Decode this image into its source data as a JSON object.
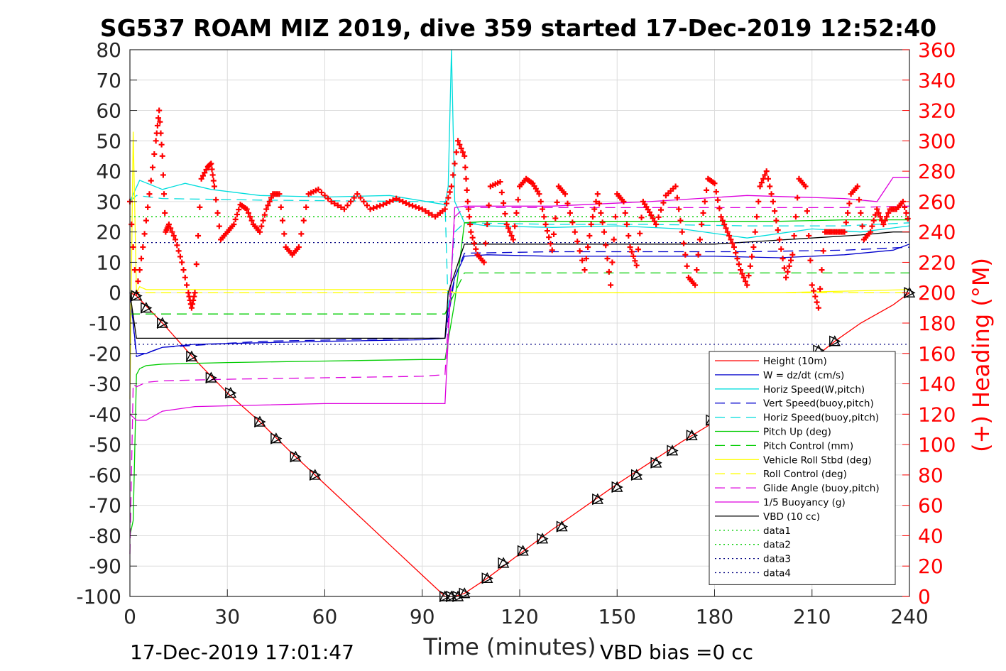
{
  "chart_data": {
    "type": "line",
    "title": "SG537 ROAM MIZ 2019, dive 359 started 17-Dec-2019 12:52:40",
    "xlabel": "Time (minutes)",
    "ylabel_right": "(+) Heading (°M)",
    "xlim": [
      0,
      240
    ],
    "ylim": [
      -100,
      80
    ],
    "ylim_right": [
      0,
      360
    ],
    "xticks": [
      "0",
      "30",
      "60",
      "90",
      "120",
      "150",
      "180",
      "210",
      "240"
    ],
    "yticks_left": [
      "80",
      "70",
      "60",
      "50",
      "40",
      "30",
      "20",
      "10",
      "0",
      "-10",
      "-20",
      "-30",
      "-40",
      "-50",
      "-60",
      "-70",
      "-80",
      "-90",
      "-100"
    ],
    "yticks_right": [
      "360",
      "340",
      "320",
      "300",
      "280",
      "260",
      "240",
      "220",
      "200",
      "180",
      "160",
      "140",
      "120",
      "100",
      "80",
      "60",
      "40",
      "20",
      "0"
    ],
    "grid": true,
    "legend_position": "lower-right",
    "footer_left": "17-Dec-2019 17:01:47",
    "footer_right": "VBD bias =0 cc",
    "heading_color": "#ff0000",
    "series": [
      {
        "name": "Height (10m)",
        "color": "#ff0000",
        "style": "solid",
        "x": [
          0,
          2,
          10,
          20,
          30,
          40,
          50,
          57,
          70,
          80,
          90,
          97,
          100,
          103,
          110,
          120,
          130,
          150,
          170,
          190,
          210,
          217,
          225,
          235,
          240
        ],
        "y": [
          0,
          -1,
          -10,
          -22,
          -33,
          -42.5,
          -53,
          -60,
          -73,
          -83,
          -93,
          -100,
          -100,
          -99,
          -94,
          -86,
          -78,
          -63,
          -49,
          -36,
          -22,
          -16,
          -10,
          -4,
          0
        ]
      },
      {
        "name": "W = dz/dt (cm/s)",
        "color": "#0000cc",
        "style": "solid",
        "x": [
          0,
          2,
          5,
          10,
          20,
          40,
          60,
          90,
          97,
          98,
          100,
          103,
          110,
          130,
          150,
          180,
          200,
          220,
          235,
          240
        ],
        "y": [
          0,
          -20,
          -20,
          -18,
          -17,
          -16.5,
          -16,
          -15.5,
          -15,
          -5,
          5,
          12,
          12.5,
          12,
          12,
          12,
          11.5,
          12.5,
          14,
          16
        ]
      },
      {
        "name": "Horiz Speed(W,pitch)",
        "color": "#00dddd",
        "style": "solid",
        "x": [
          0,
          3,
          10,
          17,
          25,
          40,
          60,
          80,
          97,
          98,
          99,
          100,
          103,
          110,
          130,
          150,
          170,
          190,
          210,
          225,
          240
        ],
        "y": [
          30,
          37,
          34,
          36,
          34,
          32,
          31.5,
          32,
          29,
          35,
          80,
          30,
          23,
          22,
          21.5,
          22,
          21,
          18,
          21,
          20,
          22
        ]
      },
      {
        "name": "Vert Speed(buoy,pitch)",
        "color": "#0000cc",
        "style": "dashed",
        "x": [
          0,
          2,
          10,
          40,
          90,
          97,
          100,
          103,
          130,
          160,
          190,
          220,
          240
        ],
        "y": [
          0,
          -21,
          -18,
          -16,
          -15,
          -15,
          5,
          13,
          13.5,
          13.5,
          13.5,
          14,
          15
        ]
      },
      {
        "name": "Horiz Speed(buoy,pitch)",
        "color": "#00dddd",
        "style": "dashed",
        "x": [
          0,
          2,
          10,
          40,
          90,
          97,
          98,
          100,
          103,
          130,
          160,
          190,
          220,
          240
        ],
        "y": [
          30,
          32,
          31,
          30.5,
          30,
          30,
          -5,
          20,
          23,
          22.5,
          22.5,
          22,
          22,
          23
        ]
      },
      {
        "name": "Pitch Up (deg)",
        "color": "#00cc00",
        "style": "solid",
        "x": [
          0,
          1,
          2,
          3,
          5,
          10,
          30,
          60,
          90,
          97,
          100,
          103,
          110,
          140,
          170,
          200,
          220,
          240
        ],
        "y": [
          -80,
          -75,
          -27,
          -25,
          -24,
          -23.5,
          -23,
          -22.5,
          -22,
          -22,
          -3,
          23,
          23.5,
          23.5,
          23.5,
          23.5,
          24,
          24
        ]
      },
      {
        "name": "Pitch Control (mm)",
        "color": "#00cc00",
        "style": "dashed",
        "x": [
          0,
          2,
          5,
          97,
          100,
          103,
          240
        ],
        "y": [
          -7,
          -7,
          -7,
          -7,
          0,
          6.5,
          6.5
        ]
      },
      {
        "name": "Vehicle Roll Stbd (deg)",
        "color": "#ffff00",
        "style": "solid",
        "x": [
          0,
          1,
          2,
          3,
          5,
          10,
          30,
          60,
          90,
          97,
          100,
          110,
          150,
          200,
          240
        ],
        "y": [
          -35,
          53,
          0,
          2,
          1,
          1,
          1,
          1,
          1,
          1,
          0,
          0,
          0,
          0,
          1
        ]
      },
      {
        "name": "Roll Control (deg)",
        "color": "#ffff00",
        "style": "dashed",
        "x": [
          0,
          240
        ],
        "y": [
          0,
          0
        ]
      },
      {
        "name": "Glide Angle (buoy,pitch)",
        "color": "#dd00dd",
        "style": "dashed",
        "x": [
          0,
          1,
          2,
          5,
          10,
          30,
          60,
          90,
          97,
          100,
          103,
          130,
          160,
          190,
          220,
          240
        ],
        "y": [
          -86,
          -30,
          -31,
          -29.5,
          -29,
          -28.5,
          -28,
          -27.5,
          -27,
          25,
          28,
          28,
          28,
          28,
          28,
          28.5
        ]
      },
      {
        "name": "1/5 Buoyancy (g)",
        "color": "#dd00dd",
        "style": "solid",
        "x": [
          0,
          2,
          5,
          10,
          20,
          40,
          60,
          90,
          97,
          100,
          103,
          130,
          160,
          190,
          220,
          230,
          235,
          240
        ],
        "y": [
          -40,
          -42,
          -42,
          -39,
          -37.5,
          -37,
          -36.5,
          -36.5,
          -36.5,
          28,
          28.5,
          28.5,
          30,
          32,
          31,
          30,
          38,
          38
        ]
      },
      {
        "name": "VBD (10 cc)",
        "color": "#000000",
        "style": "solid",
        "x": [
          0,
          2,
          3,
          97,
          98,
          103,
          180,
          195,
          210,
          225,
          235,
          240
        ],
        "y": [
          0,
          -15,
          -15,
          -15,
          0,
          16,
          16,
          17,
          18,
          19,
          20,
          20
        ]
      },
      {
        "name": "data1",
        "color": "#00cc00",
        "style": "dotted",
        "x": [
          0,
          240
        ],
        "y": [
          25,
          25
        ]
      },
      {
        "name": "data2",
        "color": "#00cc00",
        "style": "dotted",
        "x": [
          0,
          240
        ],
        "y": [
          25,
          25
        ]
      },
      {
        "name": "data3",
        "color": "#000080",
        "style": "dotted",
        "x": [
          0,
          240
        ],
        "y": [
          16.5,
          16.5
        ]
      },
      {
        "name": "data4",
        "color": "#000080",
        "style": "dotted",
        "x": [
          0,
          240
        ],
        "y": [
          -17,
          -17
        ]
      }
    ],
    "heading": {
      "name": "(+) Heading (°M)",
      "color": "#ff0000",
      "axis": "right",
      "x": [
        0,
        2,
        4,
        6,
        8,
        9,
        10,
        11,
        12,
        14,
        16,
        18,
        19,
        20,
        22,
        24,
        25,
        26,
        28,
        30,
        32,
        34,
        36,
        38,
        40,
        42,
        44,
        46,
        48,
        50,
        52,
        55,
        58,
        62,
        66,
        70,
        74,
        78,
        82,
        86,
        90,
        94,
        97,
        99,
        101,
        103,
        104,
        105,
        107,
        109,
        111,
        114,
        116,
        118,
        120,
        122,
        124,
        126,
        128,
        130,
        132,
        134,
        137,
        140,
        142,
        144,
        146,
        148,
        150,
        152,
        154,
        156,
        158,
        160,
        162,
        165,
        168,
        170,
        172,
        174,
        176,
        178,
        180,
        182,
        184,
        186,
        188,
        190,
        192,
        194,
        196,
        198,
        200,
        202,
        204,
        206,
        208,
        210,
        212,
        214,
        216,
        218,
        220,
        222,
        224,
        226,
        228,
        230,
        232,
        234,
        236,
        238,
        240
      ],
      "y": [
        260,
        200,
        230,
        265,
        300,
        320,
        290,
        240,
        245,
        235,
        220,
        200,
        190,
        200,
        275,
        283,
        285,
        270,
        235,
        240,
        245,
        258,
        255,
        245,
        240,
        255,
        265,
        265,
        230,
        225,
        230,
        265,
        268,
        260,
        255,
        265,
        255,
        258,
        262,
        258,
        255,
        250,
        255,
        270,
        300,
        290,
        260,
        240,
        225,
        220,
        270,
        273,
        245,
        235,
        270,
        275,
        272,
        265,
        245,
        228,
        270,
        265,
        240,
        215,
        245,
        265,
        240,
        205,
        265,
        260,
        230,
        218,
        260,
        253,
        245,
        264,
        270,
        240,
        210,
        205,
        245,
        275,
        272,
        250,
        240,
        230,
        215,
        205,
        230,
        270,
        280,
        260,
        235,
        210,
        225,
        275,
        270,
        205,
        190,
        240,
        240,
        240,
        240,
        265,
        270,
        235,
        240,
        255,
        245,
        255,
        255,
        260,
        245
      ]
    },
    "markers": {
      "type": "triangles",
      "x": [
        2,
        5,
        10,
        19,
        25,
        31,
        40,
        45,
        51,
        57,
        97,
        99,
        101,
        103,
        110,
        115,
        121,
        127,
        133,
        144,
        150,
        156,
        162,
        167,
        173,
        179,
        184,
        190,
        196,
        205,
        212,
        217,
        240
      ],
      "y": [
        -1,
        -5,
        -10,
        -21,
        -28,
        -33,
        -42.5,
        -48,
        -54,
        -60,
        -100,
        -100,
        -100,
        -99,
        -94,
        -89,
        -85,
        -81,
        -77,
        -68,
        -64,
        -60,
        -56,
        -52,
        -47,
        -42,
        -38,
        -34,
        -30,
        -24,
        -19,
        -16,
        0
      ]
    }
  }
}
